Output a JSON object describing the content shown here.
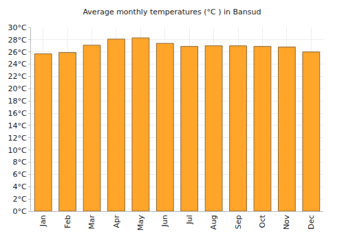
{
  "chart_data": {
    "type": "bar",
    "title": "Average monthly temperatures (°C ) in Bansud",
    "categories": [
      "Jan",
      "Feb",
      "Mar",
      "Apr",
      "May",
      "Jun",
      "Jul",
      "Aug",
      "Sep",
      "Oct",
      "Nov",
      "Dec"
    ],
    "values": [
      25.7,
      25.9,
      27.1,
      28.1,
      28.3,
      27.4,
      26.9,
      27.0,
      27.0,
      26.9,
      26.8,
      26.0
    ],
    "color": "#ffa52a",
    "ylim": [
      0,
      30
    ],
    "yticks": [
      {
        "value": 0,
        "label": "0°C"
      },
      {
        "value": 2,
        "label": "2°C"
      },
      {
        "value": 4,
        "label": "4°C"
      },
      {
        "value": 6,
        "label": "6°C"
      },
      {
        "value": 8,
        "label": "8°C"
      },
      {
        "value": 10,
        "label": "10°C"
      },
      {
        "value": 12,
        "label": "12°C"
      },
      {
        "value": 14,
        "label": "14°C"
      },
      {
        "value": 16,
        "label": "16°C"
      },
      {
        "value": 18,
        "label": "18°C"
      },
      {
        "value": 20,
        "label": "20°C"
      },
      {
        "value": 22,
        "label": "22°C"
      },
      {
        "value": 24,
        "label": "24°C"
      },
      {
        "value": 26,
        "label": "26°C"
      },
      {
        "value": 28,
        "label": "28°C"
      },
      {
        "value": 30,
        "label": "30°C"
      }
    ],
    "grid": true
  }
}
